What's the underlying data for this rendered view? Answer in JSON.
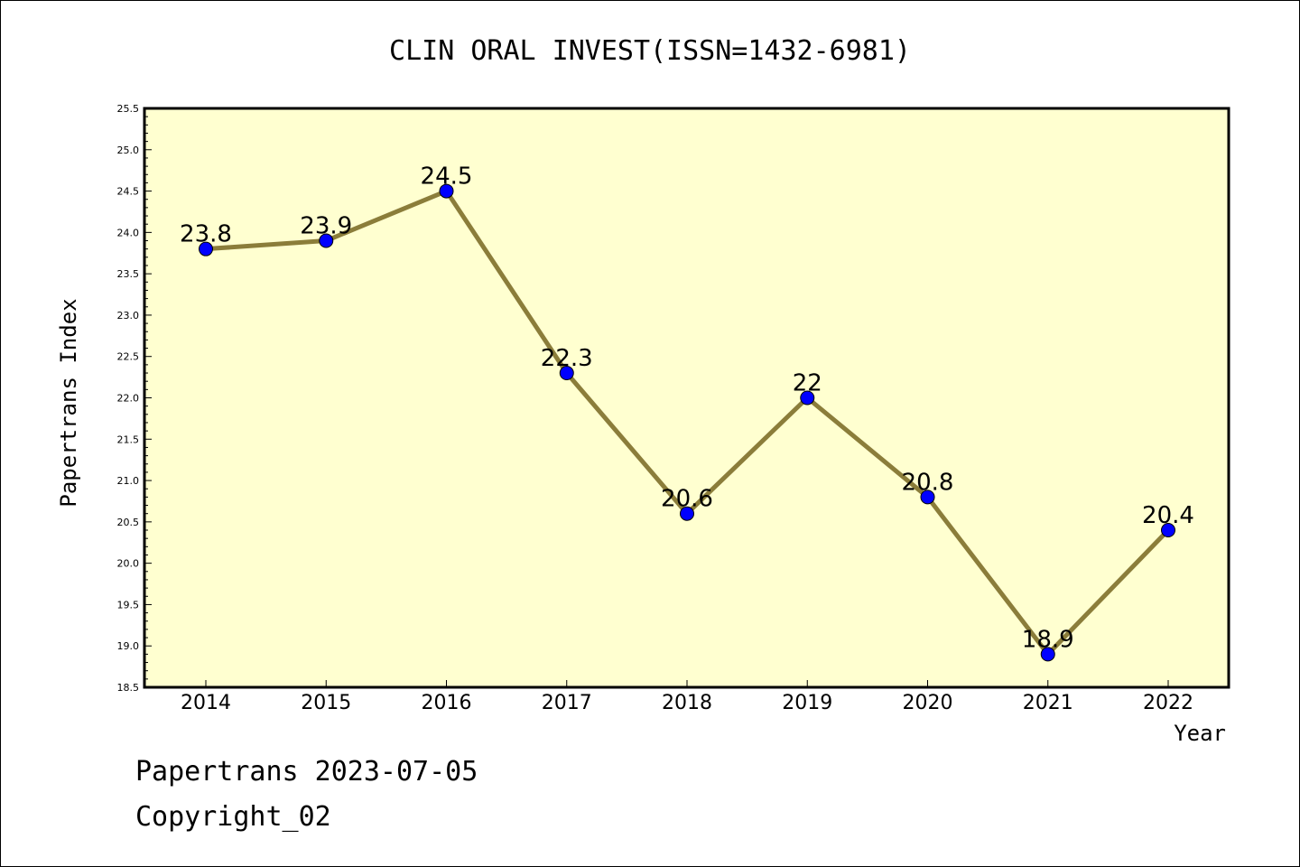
{
  "chart_data": {
    "type": "line",
    "title": "CLIN ORAL INVEST(ISSN=1432-6981)",
    "xlabel": "Year",
    "ylabel": "Papertrans Index",
    "categories": [
      "2014",
      "2015",
      "2016",
      "2017",
      "2018",
      "2019",
      "2020",
      "2021",
      "2022"
    ],
    "values": [
      23.8,
      23.9,
      24.5,
      22.3,
      20.6,
      22,
      20.8,
      18.9,
      20.4
    ],
    "data_labels": [
      "23.8",
      "23.9",
      "24.5",
      "22.3",
      "20.6",
      "22",
      "20.8",
      "18.9",
      "20.4"
    ],
    "ylim": [
      18.5,
      25.5
    ],
    "yticks": [
      "18.5",
      "19.0",
      "19.5",
      "20.0",
      "20.5",
      "21.0",
      "21.5",
      "22.0",
      "22.5",
      "23.0",
      "23.5",
      "24.0",
      "24.5",
      "25.0",
      "25.5"
    ],
    "grid": false,
    "colors": {
      "plot_background": "#ffffd0",
      "line": "#8b7d3a",
      "marker": "#0000ff"
    }
  },
  "footer": {
    "line1": "Papertrans 2023-07-05",
    "line2": "Copyright_02"
  }
}
